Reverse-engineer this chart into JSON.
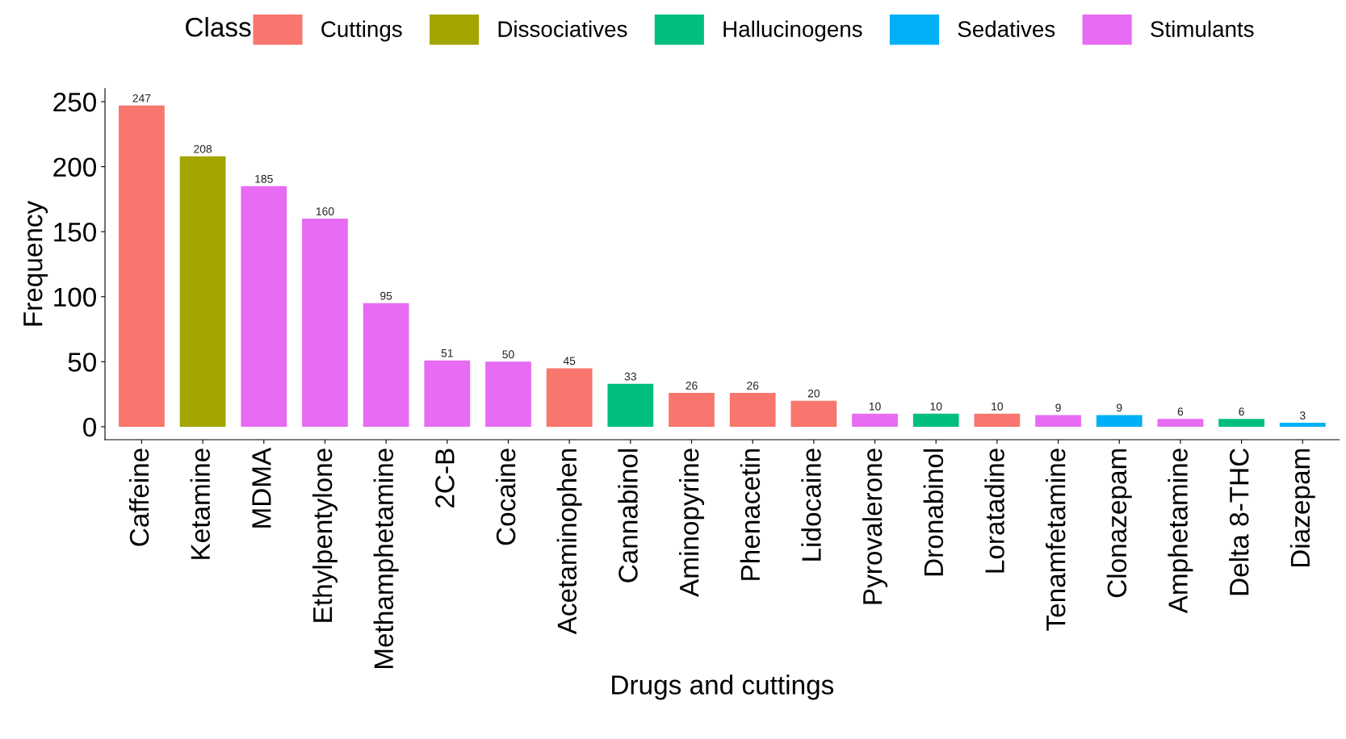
{
  "chart_data": {
    "type": "bar",
    "xlabel": "Drugs and cuttings",
    "ylabel": "Frequency",
    "legend_title": "Class",
    "categories": [
      "Caffeine",
      "Ketamine",
      "MDMA",
      "Ethylpentylone",
      "Methamphetamine",
      "2C-B",
      "Cocaine",
      "Acetaminophen",
      "Cannabinol",
      "Aminopyrine",
      "Phenacetin",
      "Lidocaine",
      "Pyrovalerone",
      "Dronabinol",
      "Loratadine",
      "Tenamfetamine",
      "Clonazepam",
      "Amphetamine",
      "Delta 8-THC",
      "Diazepam"
    ],
    "series": [
      {
        "name": "Cuttings",
        "color": "#f8766d",
        "values": [
          247,
          null,
          null,
          null,
          null,
          null,
          null,
          45,
          null,
          26,
          26,
          20,
          null,
          null,
          10,
          null,
          null,
          null,
          null,
          null
        ]
      },
      {
        "name": "Dissociatives",
        "color": "#a3a500",
        "values": [
          null,
          208,
          null,
          null,
          null,
          null,
          null,
          null,
          null,
          null,
          null,
          null,
          null,
          null,
          null,
          null,
          null,
          null,
          null,
          null
        ]
      },
      {
        "name": "Hallucinogens",
        "color": "#00bf7d",
        "values": [
          null,
          null,
          null,
          null,
          null,
          null,
          null,
          null,
          33,
          null,
          null,
          null,
          null,
          10,
          null,
          null,
          null,
          null,
          6,
          null
        ]
      },
      {
        "name": "Sedatives",
        "color": "#00b0f6",
        "values": [
          null,
          null,
          null,
          null,
          null,
          null,
          null,
          null,
          null,
          null,
          null,
          null,
          null,
          null,
          null,
          null,
          9,
          null,
          null,
          3
        ]
      },
      {
        "name": "Stimulants",
        "color": "#e76bf3",
        "values": [
          null,
          null,
          185,
          160,
          95,
          51,
          50,
          null,
          null,
          null,
          null,
          null,
          10,
          null,
          null,
          9,
          null,
          6,
          null,
          null
        ]
      }
    ],
    "ylim": [
      -10,
      260
    ],
    "yticks": [
      0,
      50,
      100,
      150,
      200,
      250
    ],
    "grid": false,
    "legend": "top",
    "data_labels": true
  }
}
